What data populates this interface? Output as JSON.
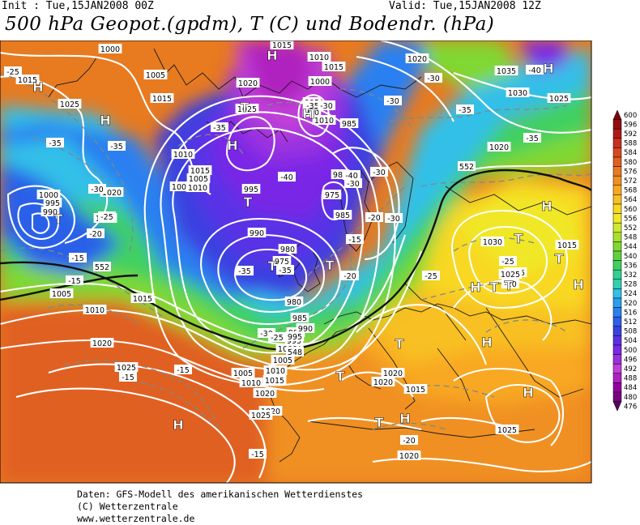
{
  "header": {
    "init": "Init : Tue,15JAN2008 00Z",
    "valid": "Valid: Tue,15JAN2008 12Z",
    "title": "500 hPa Geopot.(gpdm), T (C) und Bodendr. (hPa)"
  },
  "colors": {
    "c476": "#5a0060",
    "c480": "#7a0080",
    "c484": "#9400a0",
    "c488": "#b020c0",
    "c492": "#c040d8",
    "c496": "#9a30e0",
    "c500": "#7a28e6",
    "c504": "#5a30e6",
    "c508": "#3a40e0",
    "c512": "#2a60e8",
    "c516": "#2a80f0",
    "c520": "#28a0f0",
    "c524": "#30c0e8",
    "c528": "#30d0b0",
    "c532": "#30d090",
    "c536": "#40d060",
    "c540": "#60d040",
    "c544": "#80d830",
    "c548": "#a8e030",
    "c552": "#d0e830",
    "c556": "#f0e828",
    "c560": "#f8d820",
    "c564": "#f8c020",
    "c568": "#f8a820",
    "c572": "#f09020",
    "c576": "#e87a20",
    "c580": "#e06020",
    "c584": "#d84820",
    "c588": "#c83020",
    "c592": "#b01818",
    "c596": "#900c10",
    "c600": "#800010"
  },
  "legend": {
    "levels": [
      "600",
      "596",
      "592",
      "588",
      "584",
      "580",
      "576",
      "572",
      "568",
      "564",
      "560",
      "556",
      "552",
      "548",
      "544",
      "540",
      "536",
      "532",
      "528",
      "524",
      "520",
      "516",
      "512",
      "508",
      "504",
      "500",
      "496",
      "492",
      "488",
      "484",
      "480",
      "476"
    ]
  },
  "map": {
    "pressure_labels": [
      {
        "t": "1000"
      },
      {
        "t": "1005"
      },
      {
        "t": "1015"
      },
      {
        "t": "1025"
      },
      {
        "t": "1015"
      },
      {
        "t": "1010"
      },
      {
        "t": "1005"
      },
      {
        "t": "1000"
      },
      {
        "t": "995"
      },
      {
        "t": "990"
      },
      {
        "t": "1015"
      },
      {
        "t": "1020"
      },
      {
        "t": "1005"
      },
      {
        "t": "1010"
      },
      {
        "t": "1015"
      },
      {
        "t": "1020"
      },
      {
        "t": "1025"
      },
      {
        "t": "1020"
      },
      {
        "t": "1025"
      },
      {
        "t": "1015"
      },
      {
        "t": "1010"
      },
      {
        "t": "1000"
      },
      {
        "t": "995"
      },
      {
        "t": "990"
      },
      {
        "t": "985"
      },
      {
        "t": "1015"
      },
      {
        "t": "1005"
      },
      {
        "t": "1010"
      },
      {
        "t": "1015"
      },
      {
        "t": "1020"
      },
      {
        "t": "1025"
      },
      {
        "t": "995"
      },
      {
        "t": "990"
      },
      {
        "t": "980"
      },
      {
        "t": "975"
      },
      {
        "t": "980"
      },
      {
        "t": "985"
      },
      {
        "t": "990"
      },
      {
        "t": "995"
      },
      {
        "t": "1000"
      },
      {
        "t": "1005"
      },
      {
        "t": "1010"
      },
      {
        "t": "1015"
      },
      {
        "t": "1020"
      },
      {
        "t": "975"
      },
      {
        "t": "980"
      },
      {
        "t": "985"
      },
      {
        "t": "1010"
      },
      {
        "t": "1020"
      },
      {
        "t": "1035"
      },
      {
        "t": "1030"
      },
      {
        "t": "1025"
      },
      {
        "t": "1020"
      },
      {
        "t": "1030"
      },
      {
        "t": "1025"
      },
      {
        "t": "1025"
      },
      {
        "t": "1020"
      },
      {
        "t": "1020"
      },
      {
        "t": "1015"
      },
      {
        "t": "1010"
      },
      {
        "t": "1005"
      },
      {
        "t": "1000"
      },
      {
        "t": "995"
      },
      {
        "t": "990"
      },
      {
        "t": "1020"
      },
      {
        "t": "1015"
      },
      {
        "t": "1025"
      }
    ],
    "temp_labels": [
      {
        "t": "-25"
      },
      {
        "t": "-35"
      },
      {
        "t": "-35"
      },
      {
        "t": "-30"
      },
      {
        "t": "-25"
      },
      {
        "t": "-20"
      },
      {
        "t": "-15"
      },
      {
        "t": "-15"
      },
      {
        "t": "-35"
      },
      {
        "t": "-40"
      },
      {
        "t": "-35"
      },
      {
        "t": "-30"
      },
      {
        "t": "-40"
      },
      {
        "t": "-35"
      },
      {
        "t": "-30"
      },
      {
        "t": "-25"
      },
      {
        "t": "-30"
      },
      {
        "t": "-30"
      },
      {
        "t": "-35"
      },
      {
        "t": "-30"
      },
      {
        "t": "-40"
      },
      {
        "t": "-35"
      },
      {
        "t": "-30"
      },
      {
        "t": "-25"
      },
      {
        "t": "-20"
      },
      {
        "t": "-15"
      },
      {
        "t": "-35"
      },
      {
        "t": "-25"
      },
      {
        "t": "-20"
      },
      {
        "t": "-15"
      },
      {
        "t": "-15"
      },
      {
        "t": "-20"
      },
      {
        "t": "-25"
      },
      {
        "t": "-30"
      },
      {
        "t": "-15"
      },
      {
        "t": "-15"
      },
      {
        "t": "-20"
      }
    ],
    "height_labels": [
      {
        "t": "552"
      },
      {
        "t": "548"
      },
      {
        "t": "552"
      }
    ],
    "H": 15,
    "T": 15,
    "marker_H": "H",
    "marker_T": "T"
  },
  "footer": {
    "line1": "Daten: GFS-Modell des amerikanischen Wetterdienstes",
    "line2": "(C) Wetterzentrale",
    "line3": "www.wetterzentrale.de"
  }
}
